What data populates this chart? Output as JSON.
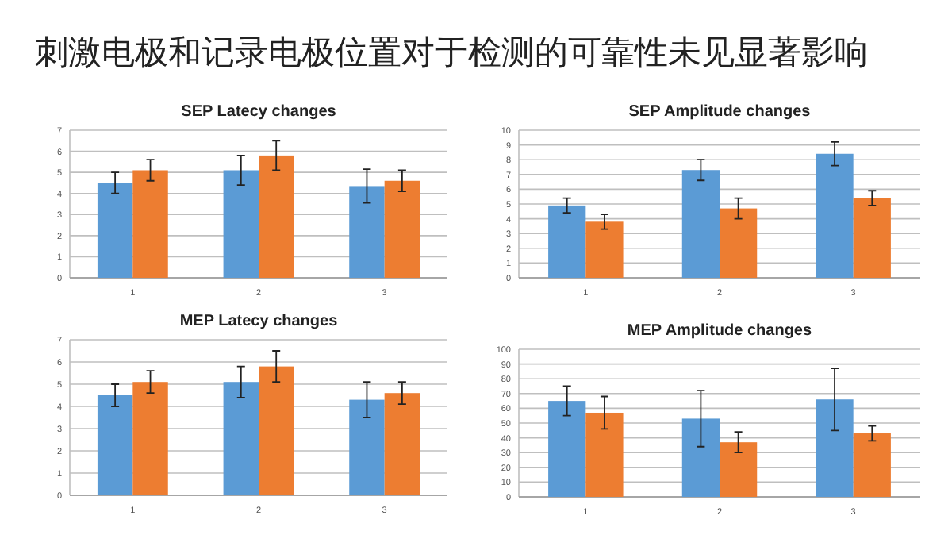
{
  "chart_data": [
    {
      "type": "other",
      "title": "刺激电极和记录电极位置对于检测的可靠性未见显著影响"
    },
    {
      "type": "bar",
      "title": "SEP Latecy changes",
      "categories": [
        "1",
        "2",
        "3"
      ],
      "ylim": [
        0,
        7
      ],
      "yticks": [
        0,
        1,
        2,
        3,
        4,
        5,
        6,
        7
      ],
      "grid": "y",
      "series": [
        {
          "color": "#5b9bd5",
          "values": [
            4.5,
            5.1,
            4.35
          ],
          "errors": [
            0.5,
            0.7,
            0.8
          ]
        },
        {
          "color": "#ed7d31",
          "values": [
            5.1,
            5.8,
            4.6
          ],
          "errors": [
            0.5,
            0.7,
            0.5
          ]
        }
      ]
    },
    {
      "type": "bar",
      "title": "SEP Amplitude changes",
      "categories": [
        "1",
        "2",
        "3"
      ],
      "ylim": [
        0,
        10
      ],
      "yticks": [
        0,
        1,
        2,
        3,
        4,
        5,
        6,
        7,
        8,
        9,
        10
      ],
      "grid": "y",
      "series": [
        {
          "color": "#5b9bd5",
          "values": [
            4.9,
            7.3,
            8.4
          ],
          "errors": [
            0.5,
            0.7,
            0.8
          ]
        },
        {
          "color": "#ed7d31",
          "values": [
            3.8,
            4.7,
            5.4
          ],
          "errors": [
            0.5,
            0.7,
            0.5
          ]
        }
      ]
    },
    {
      "type": "bar",
      "title": "MEP Latecy changes",
      "categories": [
        "1",
        "2",
        "3"
      ],
      "ylim": [
        0,
        7
      ],
      "yticks": [
        0,
        1,
        2,
        3,
        4,
        5,
        6,
        7
      ],
      "grid": "y",
      "series": [
        {
          "color": "#5b9bd5",
          "values": [
            4.5,
            5.1,
            4.3
          ],
          "errors": [
            0.5,
            0.7,
            0.8
          ]
        },
        {
          "color": "#ed7d31",
          "values": [
            5.1,
            5.8,
            4.6
          ],
          "errors": [
            0.5,
            0.7,
            0.5
          ]
        }
      ]
    },
    {
      "type": "bar",
      "title": "MEP Amplitude changes",
      "categories": [
        "1",
        "2",
        "3"
      ],
      "ylim": [
        0,
        100
      ],
      "yticks": [
        0,
        10,
        20,
        30,
        40,
        50,
        60,
        70,
        80,
        90,
        100
      ],
      "grid": "y",
      "series": [
        {
          "color": "#5b9bd5",
          "values": [
            65,
            53,
            66
          ],
          "errors": [
            10,
            19,
            21
          ]
        },
        {
          "color": "#ed7d31",
          "values": [
            57,
            37,
            43
          ],
          "errors": [
            11,
            7,
            5
          ]
        }
      ]
    }
  ]
}
